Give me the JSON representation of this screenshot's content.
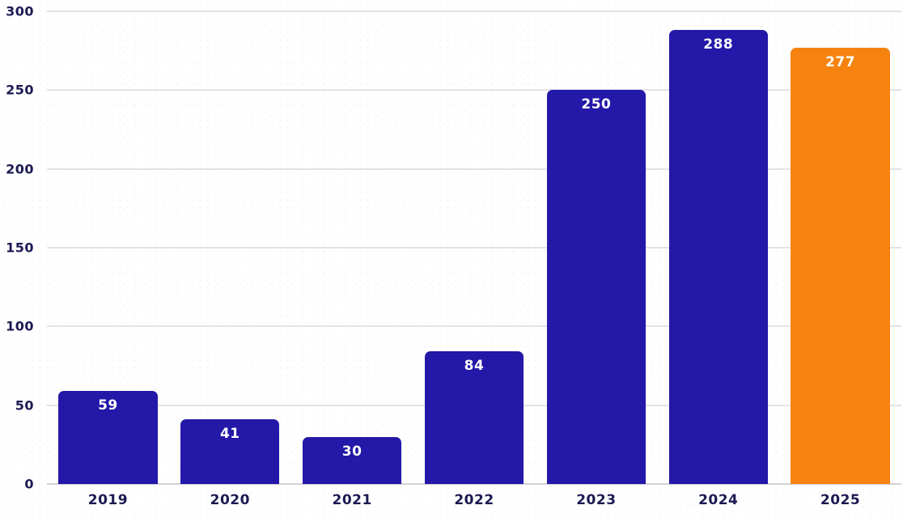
{
  "chart_data": {
    "type": "bar",
    "categories": [
      "2019",
      "2020",
      "2021",
      "2022",
      "2023",
      "2024",
      "2025"
    ],
    "values": [
      59,
      41,
      30,
      84,
      250,
      288,
      277
    ],
    "title": "",
    "xlabel": "",
    "ylabel": "",
    "ylim": [
      0,
      300
    ],
    "y_ticks": [
      0,
      50,
      100,
      150,
      200,
      250,
      300
    ],
    "grid": "horizontal",
    "legend": "none",
    "colors": {
      "bar": "#2318a8",
      "highlight": "#f68310",
      "value_label": "#ffffff",
      "axis_label": "#1c1a52"
    },
    "highlight_index": 6
  }
}
